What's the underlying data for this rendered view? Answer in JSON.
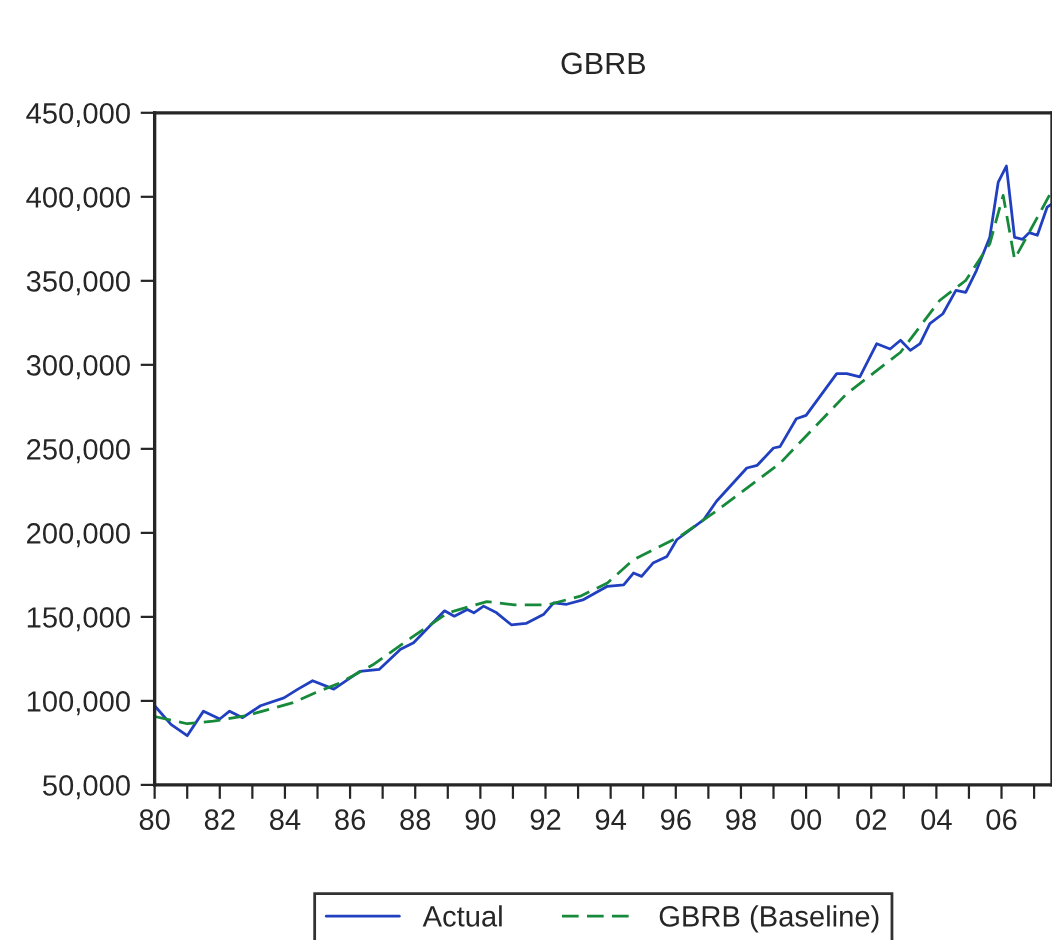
{
  "chart_data": {
    "type": "line",
    "title": "GBRB",
    "xlim": [
      1980,
      2007.55
    ],
    "ylim": [
      50000,
      450000
    ],
    "yticks": [
      {
        "value": 50000,
        "label": "50,000"
      },
      {
        "value": 100000,
        "label": "100,000"
      },
      {
        "value": 150000,
        "label": "150,000"
      },
      {
        "value": 200000,
        "label": "200,000"
      },
      {
        "value": 250000,
        "label": "250,000"
      },
      {
        "value": 300000,
        "label": "300,000"
      },
      {
        "value": 350000,
        "label": "350,000"
      },
      {
        "value": 400000,
        "label": "400,000"
      },
      {
        "value": 450000,
        "label": "450,000"
      }
    ],
    "xticks": [
      {
        "value": 1980,
        "label": "80"
      },
      {
        "value": 1981,
        "label": null
      },
      {
        "value": 1982,
        "label": "82"
      },
      {
        "value": 1983,
        "label": null
      },
      {
        "value": 1984,
        "label": "84"
      },
      {
        "value": 1985,
        "label": null
      },
      {
        "value": 1986,
        "label": "86"
      },
      {
        "value": 1987,
        "label": null
      },
      {
        "value": 1988,
        "label": "88"
      },
      {
        "value": 1989,
        "label": null
      },
      {
        "value": 1990,
        "label": "90"
      },
      {
        "value": 1991,
        "label": null
      },
      {
        "value": 1992,
        "label": "92"
      },
      {
        "value": 1993,
        "label": null
      },
      {
        "value": 1994,
        "label": "94"
      },
      {
        "value": 1995,
        "label": null
      },
      {
        "value": 1996,
        "label": "96"
      },
      {
        "value": 1997,
        "label": null
      },
      {
        "value": 1998,
        "label": "98"
      },
      {
        "value": 1999,
        "label": null
      },
      {
        "value": 2000,
        "label": "00"
      },
      {
        "value": 2001,
        "label": null
      },
      {
        "value": 2002,
        "label": "02"
      },
      {
        "value": 2003,
        "label": null
      },
      {
        "value": 2004,
        "label": "04"
      },
      {
        "value": 2005,
        "label": null
      },
      {
        "value": 2006,
        "label": "06"
      },
      {
        "value": 2007,
        "label": null
      }
    ],
    "grid": false,
    "legend": "bottom",
    "series": [
      {
        "name": "Actual",
        "color": "#2040c0",
        "line_style": "solid",
        "x": [
          1980.0,
          1980.5,
          1981.0,
          1981.5,
          1982.0,
          1982.3,
          1982.7,
          1983.25,
          1983.97,
          1984.4,
          1984.85,
          1985.5,
          1986.3,
          1986.9,
          1987.55,
          1987.95,
          1988.9,
          1989.2,
          1989.6,
          1989.8,
          1990.1,
          1990.5,
          1990.95,
          1991.4,
          1991.95,
          1992.25,
          1992.65,
          1993.17,
          1993.9,
          1994.4,
          1994.7,
          1994.95,
          1995.3,
          1995.73,
          1996.03,
          1996.85,
          1997.25,
          1998.18,
          1998.5,
          1999.0,
          1999.2,
          1999.7,
          2000.0,
          2000.94,
          2001.25,
          2001.65,
          2002.17,
          2002.58,
          2002.9,
          2003.2,
          2003.5,
          2003.8,
          2004.2,
          2004.6,
          2004.9,
          2005.23,
          2005.64,
          2005.9,
          2006.15,
          2006.4,
          2006.65,
          2006.85,
          2007.1,
          2007.4,
          2007.55
        ],
        "values": [
          97100,
          86000,
          79300,
          93900,
          89200,
          93900,
          90000,
          97100,
          101800,
          107000,
          112000,
          107000,
          117600,
          118800,
          130700,
          134600,
          153600,
          150400,
          154400,
          152400,
          156400,
          152400,
          145300,
          146100,
          151600,
          158300,
          157500,
          160300,
          168200,
          169000,
          176100,
          174100,
          182000,
          186000,
          195900,
          207700,
          218800,
          238600,
          240200,
          250500,
          251300,
          267900,
          269900,
          294800,
          294800,
          292800,
          312600,
          309400,
          314600,
          308600,
          312600,
          324500,
          330400,
          344300,
          343100,
          356100,
          375900,
          408800,
          418300,
          375900,
          374700,
          378700,
          377100,
          393800,
          395800
        ]
      },
      {
        "name": "GBRB (Baseline)",
        "color": "#168a3a",
        "line_style": "dashed",
        "x": [
          1980.0,
          1981.0,
          1981.8,
          1982.8,
          1984.25,
          1984.95,
          1985.7,
          1986.7,
          1987.95,
          1989.0,
          1990.2,
          1991.05,
          1992.05,
          1993.07,
          1993.9,
          1994.7,
          1996.13,
          1997.15,
          1999.2,
          2001.25,
          2002.9,
          2004.1,
          2004.9,
          2005.64,
          2006.05,
          2006.4,
          2007.55
        ],
        "values": [
          90700,
          86400,
          87900,
          91100,
          99000,
          105000,
          110800,
          121500,
          138500,
          152400,
          159100,
          157100,
          157100,
          162300,
          170200,
          184000,
          197900,
          211700,
          241400,
          282900,
          307500,
          338300,
          350200,
          372000,
          400900,
          362900,
          403700
        ]
      }
    ]
  }
}
